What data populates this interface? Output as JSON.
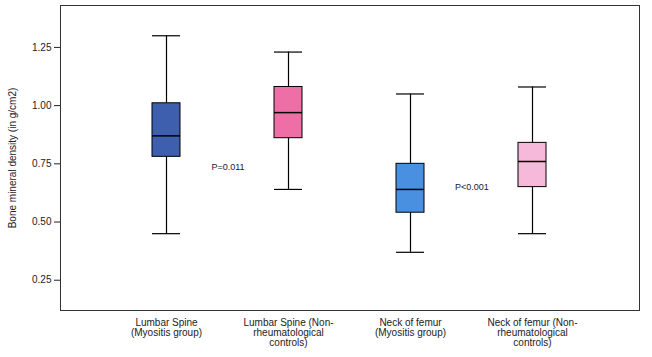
{
  "chart_data": {
    "type": "box",
    "y_label": "Bone mineral density (in g/cm2)",
    "categories": [
      "Lumbar Spine\n(Myositis group)",
      "Lumbar Spine (Non-\nrheumatological\ncontrols)",
      "Neck of femur\n(Myositis group)",
      "Neck of femur (Non-\nrheumatological\ncontrols)"
    ],
    "colors": [
      "#3e5fae",
      "#ee6fa5",
      "#4990e0",
      "#f7b9d9"
    ],
    "min": [
      0.45,
      0.64,
      0.37,
      0.45
    ],
    "q1": [
      0.78,
      0.86,
      0.54,
      0.65
    ],
    "median": [
      0.87,
      0.97,
      0.64,
      0.76
    ],
    "q3": [
      1.01,
      1.08,
      0.75,
      0.84
    ],
    "max": [
      1.3,
      1.23,
      1.05,
      1.08
    ],
    "ylim": [
      0.12,
      1.43
    ],
    "yticks": [
      0.25,
      {
        "value": 0.5,
        "label": "0.50"
      },
      0.75,
      {
        "value": 1,
        "label": "1.00"
      },
      1.25
    ],
    "annotations": [
      "P=0.011",
      "P<0.001"
    ]
  }
}
